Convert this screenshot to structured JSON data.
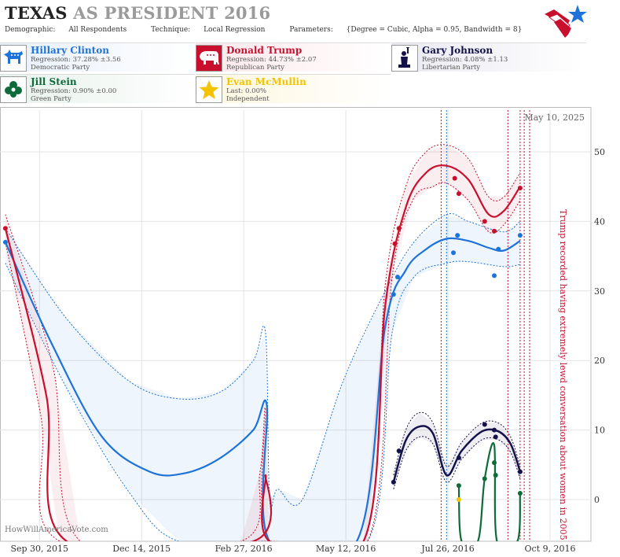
{
  "header": {
    "title_state": "TEXAS",
    "title_rest": "AS PRESIDENT 2016",
    "demographic_label": "Demographic:",
    "demographic_value": "All Respondents",
    "technique_label": "Technique:",
    "technique_value": "Local Regression",
    "parameters_label": "Parameters:",
    "parameters_value": "{Degree = Cubic, Alpha = 0.95, Bandwidth = 8}"
  },
  "candidates": [
    {
      "name": "Hillary Clinton",
      "stat": "Regression: 37.28% ±3.56",
      "party": "Democratic Party",
      "color": "#1e73d8",
      "icon": "donkey-icon"
    },
    {
      "name": "Donald Trump",
      "stat": "Regression: 44.73% ±2.07",
      "party": "Republican Party",
      "color": "#c8102e",
      "icon": "elephant-icon"
    },
    {
      "name": "Gary Johnson",
      "stat": "Regression: 4.08% ±1.13",
      "party": "Libertarian Party",
      "color": "#14124a",
      "icon": "statue-of-liberty-icon"
    },
    {
      "name": "Jill Stein",
      "stat": "Regression: 0.90% ±0.00",
      "party": "Green Party",
      "color": "#0d6b3a",
      "icon": "flower-icon"
    },
    {
      "name": "Evan McMullin",
      "stat": "Last: 0.00%",
      "party": "Independent",
      "color": "#f4c300",
      "icon": "star-icon"
    }
  ],
  "footer": {
    "site": "HowWillAmericaVote.com"
  },
  "chart_data": {
    "type": "line",
    "date_label": "May 10, 2025",
    "annotation": "Trump recorded having extremely lewd conversation about women in 2005",
    "x_ticks": [
      "Sep 30, 2015",
      "Dec 14, 2015",
      "Feb 27, 2016",
      "May 12, 2016",
      "Jul 26, 2016",
      "Oct 9, 2016"
    ],
    "y_ticks": [
      0,
      10,
      20,
      30,
      40,
      50
    ],
    "ylim": [
      -6,
      56
    ],
    "xlim": [
      "2015-09-01",
      "2016-11-08"
    ],
    "series": [
      {
        "name": "Hillary Clinton",
        "color": "#1e73d8",
        "points": [
          [
            "2015-09-05",
            37
          ],
          [
            "2016-06-16",
            29.5
          ],
          [
            "2016-06-19",
            32
          ],
          [
            "2016-07-30",
            35.5
          ],
          [
            "2016-08-02",
            38
          ],
          [
            "2016-08-29",
            32.2
          ],
          [
            "2016-09-01",
            36
          ],
          [
            "2016-09-17",
            38
          ]
        ],
        "line": [
          [
            "2015-09-05",
            37
          ],
          [
            "2015-10-10",
            22
          ],
          [
            "2015-11-15",
            9
          ],
          [
            "2015-12-20",
            4
          ],
          [
            "2016-01-15",
            3.8
          ],
          [
            "2016-02-10",
            6
          ],
          [
            "2016-03-05",
            10
          ],
          [
            "2016-03-15",
            13.5
          ],
          [
            "2016-03-17",
            -6
          ],
          [
            "2016-05-20",
            -6
          ],
          [
            "2016-06-10",
            25
          ],
          [
            "2016-06-25",
            33
          ],
          [
            "2016-07-10",
            36
          ],
          [
            "2016-07-25",
            37.5
          ],
          [
            "2016-08-10",
            37.2
          ],
          [
            "2016-08-25",
            36.2
          ],
          [
            "2016-09-05",
            35.8
          ],
          [
            "2016-09-17",
            37.2
          ]
        ],
        "upper": [
          [
            "2015-09-05",
            39
          ],
          [
            "2015-10-20",
            26
          ],
          [
            "2015-12-05",
            17
          ],
          [
            "2016-01-10",
            14.5
          ],
          [
            "2016-02-10",
            15.5
          ],
          [
            "2016-03-05",
            20
          ],
          [
            "2016-03-14",
            24
          ],
          [
            "2016-03-17",
            0
          ],
          [
            "2016-03-23",
            1.5
          ],
          [
            "2016-04-10",
            0
          ],
          [
            "2016-05-10",
            17
          ],
          [
            "2016-06-10",
            30
          ],
          [
            "2016-07-01",
            37
          ],
          [
            "2016-07-25",
            41
          ],
          [
            "2016-08-10",
            40
          ],
          [
            "2016-09-05",
            38.5
          ],
          [
            "2016-09-17",
            40
          ]
        ],
        "lower": [
          [
            "2015-09-05",
            34
          ],
          [
            "2015-10-20",
            16
          ],
          [
            "2015-12-05",
            1
          ],
          [
            "2016-01-10",
            -6
          ],
          [
            "2016-03-15",
            -6
          ],
          [
            "2016-05-28",
            -6
          ],
          [
            "2016-06-15",
            24
          ],
          [
            "2016-07-01",
            32
          ],
          [
            "2016-07-25",
            34
          ],
          [
            "2016-08-10",
            34.2
          ],
          [
            "2016-09-05",
            33.5
          ],
          [
            "2016-09-17",
            33.8
          ]
        ]
      },
      {
        "name": "Donald Trump",
        "color": "#c8102e",
        "points": [
          [
            "2015-09-05",
            39
          ],
          [
            "2016-06-17",
            36.8
          ],
          [
            "2016-06-20",
            39
          ],
          [
            "2016-07-31",
            46.2
          ],
          [
            "2016-08-03",
            44
          ],
          [
            "2016-08-22",
            40
          ],
          [
            "2016-08-29",
            38.6
          ],
          [
            "2016-09-17",
            44.8
          ]
        ],
        "line": [
          [
            "2015-09-05",
            39
          ],
          [
            "2015-10-05",
            15
          ],
          [
            "2015-10-20",
            -6
          ],
          [
            "2016-03-05",
            -6
          ],
          [
            "2016-03-14",
            3.5
          ],
          [
            "2016-03-17",
            -6
          ],
          [
            "2016-05-25",
            -6
          ],
          [
            "2016-06-10",
            28
          ],
          [
            "2016-06-25",
            42
          ],
          [
            "2016-07-10",
            47
          ],
          [
            "2016-07-25",
            48
          ],
          [
            "2016-08-10",
            46
          ],
          [
            "2016-08-25",
            41
          ],
          [
            "2016-09-05",
            41.5
          ],
          [
            "2016-09-17",
            45
          ]
        ],
        "upper": [
          [
            "2015-09-05",
            41
          ],
          [
            "2015-10-10",
            19
          ],
          [
            "2015-10-30",
            -6
          ],
          [
            "2016-02-25",
            -6
          ],
          [
            "2016-03-10",
            4
          ],
          [
            "2016-03-14",
            13
          ],
          [
            "2016-03-17",
            -6
          ],
          [
            "2016-05-25",
            -6
          ],
          [
            "2016-06-10",
            31
          ],
          [
            "2016-06-25",
            45
          ],
          [
            "2016-07-10",
            50
          ],
          [
            "2016-07-25",
            51
          ],
          [
            "2016-08-10",
            49
          ],
          [
            "2016-08-25",
            43.5
          ],
          [
            "2016-09-05",
            43.5
          ],
          [
            "2016-09-17",
            47
          ]
        ],
        "lower": [
          [
            "2015-09-05",
            37
          ],
          [
            "2015-10-01",
            12
          ],
          [
            "2015-10-15",
            -6
          ],
          [
            "2016-03-17",
            -6
          ],
          [
            "2016-05-28",
            -6
          ],
          [
            "2016-06-15",
            32
          ],
          [
            "2016-06-30",
            43
          ],
          [
            "2016-07-15",
            45
          ],
          [
            "2016-07-25",
            45.5
          ],
          [
            "2016-08-10",
            43
          ],
          [
            "2016-08-25",
            38.5
          ],
          [
            "2016-09-05",
            39.5
          ],
          [
            "2016-09-17",
            43
          ]
        ]
      },
      {
        "name": "Gary Johnson",
        "color": "#14124a",
        "points": [
          [
            "2016-06-16",
            2.5
          ],
          [
            "2016-06-20",
            7
          ],
          [
            "2016-08-03",
            6
          ],
          [
            "2016-08-22",
            10.8
          ],
          [
            "2016-08-29",
            10
          ],
          [
            "2016-08-30",
            9
          ],
          [
            "2016-09-17",
            4
          ]
        ],
        "line": [
          [
            "2016-06-16",
            2.5
          ],
          [
            "2016-06-25",
            8.5
          ],
          [
            "2016-07-05",
            10.5
          ],
          [
            "2016-07-15",
            9.5
          ],
          [
            "2016-07-25",
            3.5
          ],
          [
            "2016-08-05",
            7
          ],
          [
            "2016-08-20",
            9.8
          ],
          [
            "2016-09-01",
            9.8
          ],
          [
            "2016-09-10",
            8
          ],
          [
            "2016-09-17",
            4
          ]
        ],
        "upper": [
          [
            "2016-06-16",
            3.5
          ],
          [
            "2016-06-25",
            10
          ],
          [
            "2016-07-05",
            12.5
          ],
          [
            "2016-07-15",
            11
          ],
          [
            "2016-07-25",
            4.8
          ],
          [
            "2016-08-05",
            8.2
          ],
          [
            "2016-08-20",
            11
          ],
          [
            "2016-09-01",
            11
          ],
          [
            "2016-09-10",
            9
          ],
          [
            "2016-09-17",
            4.8
          ]
        ],
        "lower": [
          [
            "2016-06-16",
            1.5
          ],
          [
            "2016-06-25",
            7
          ],
          [
            "2016-07-05",
            9
          ],
          [
            "2016-07-15",
            8
          ],
          [
            "2016-07-25",
            2.5
          ],
          [
            "2016-08-05",
            5.8
          ],
          [
            "2016-08-20",
            8.6
          ],
          [
            "2016-09-01",
            8.6
          ],
          [
            "2016-09-10",
            6.8
          ],
          [
            "2016-09-17",
            3
          ]
        ],
        "line_width": 2.5
      },
      {
        "name": "Jill Stein",
        "color": "#0d6b3a",
        "points": [
          [
            "2016-08-03",
            2
          ],
          [
            "2016-08-22",
            3
          ],
          [
            "2016-08-29",
            5.3
          ],
          [
            "2016-08-30",
            3.5
          ],
          [
            "2016-09-17",
            0.9
          ]
        ],
        "line": [
          [
            "2016-08-03",
            2
          ],
          [
            "2016-08-05",
            -6
          ],
          [
            "2016-08-17",
            -6
          ],
          [
            "2016-08-22",
            3
          ],
          [
            "2016-08-29",
            7.8
          ],
          [
            "2016-08-31",
            -6
          ],
          [
            "2016-09-15",
            -6
          ],
          [
            "2016-09-17",
            0.9
          ]
        ],
        "upper": [],
        "lower": []
      },
      {
        "name": "Evan McMullin",
        "color": "#f4c300",
        "points": [
          [
            "2016-08-03",
            0
          ]
        ],
        "line": [],
        "upper": [],
        "lower": []
      }
    ],
    "event_lines": [
      {
        "date": "2016-07-21",
        "color": "#c8102e"
      },
      {
        "date": "2016-07-25",
        "color": "#1e73d8"
      },
      {
        "date": "2016-09-08",
        "color": "#c8102e"
      },
      {
        "date": "2016-09-17",
        "color": "#c8102e"
      },
      {
        "date": "2016-09-20",
        "color": "#c8102e"
      },
      {
        "date": "2016-09-24",
        "color": "#c8102e"
      }
    ]
  }
}
